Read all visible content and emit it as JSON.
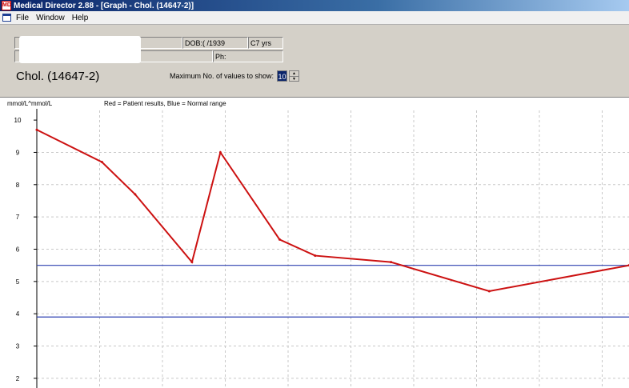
{
  "window": {
    "title": "Medical Director 2.88 - [Graph - Chol. (14647-2)]",
    "app_icon": "MD"
  },
  "menu": [
    "File",
    "Window",
    "Help"
  ],
  "patient": {
    "dob": "DOB:(    /1939",
    "age": "C7 yrs",
    "phone": "Ph:"
  },
  "chart_title": "Chol. (14647-2)",
  "max_values": {
    "label": "Maximum No. of values to show:",
    "value": "10"
  },
  "legend": {
    "units": "mmol/L^mmol/L",
    "text": "Red = Patient results,  Blue = Normal range"
  },
  "colors": {
    "patient": "#cc1111",
    "normal": "#2b3fb0",
    "grid": "#c8c8c8"
  },
  "chart_data": {
    "type": "line",
    "title": "",
    "xlabel": "",
    "ylabel": "mmol/L^mmol/L",
    "ylim": [
      1.7,
      10.3
    ],
    "y_ticks": [
      2,
      3,
      4,
      5,
      6,
      7,
      8,
      9,
      10
    ],
    "x_range": [
      0,
      1
    ],
    "grid": true,
    "series": [
      {
        "name": "Patient results",
        "x": [
          0.0,
          0.11,
          0.166,
          0.262,
          0.31,
          0.41,
          0.47,
          0.598,
          0.764,
          1.0
        ],
        "values": [
          9.7,
          8.7,
          7.7,
          5.6,
          9.0,
          6.3,
          5.8,
          5.6,
          4.7,
          5.5
        ]
      }
    ],
    "normal_range": [
      3.9,
      5.5
    ]
  }
}
